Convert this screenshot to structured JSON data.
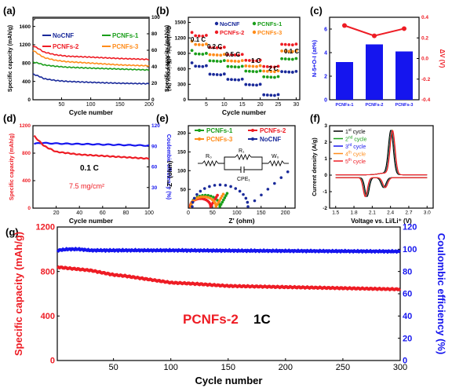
{
  "figure_colors": {
    "black": "#000000",
    "red": "#ee1c24",
    "green": "#1a9e1a",
    "orange": "#ff8c1a",
    "navy": "#1a2a9a",
    "blue": "#1515ee"
  },
  "chart_data": [
    {
      "panel": "(a)",
      "type": "line",
      "xlabel": "Cycle number",
      "ylabel": "Specific capacity (mAh/g)",
      "y2label": "Coulombic efficiency (%)",
      "xlim": [
        1,
        200
      ],
      "ylim": [
        0,
        1800
      ],
      "y2lim": [
        0,
        100
      ],
      "xticks": [
        50,
        100,
        150,
        200
      ],
      "yticks": [
        0,
        400,
        800,
        1200,
        1600
      ],
      "y2ticks": [
        0,
        20,
        40,
        60,
        80,
        100
      ],
      "legend": "top",
      "series": [
        {
          "name": "NoCNF",
          "color": "#1a2a9a",
          "x": [
            1,
            10,
            20,
            40,
            60,
            100,
            150,
            200
          ],
          "y": [
            560,
            520,
            460,
            420,
            400,
            380,
            360,
            350
          ]
        },
        {
          "name": "PCNFs-1",
          "color": "#1a9e1a",
          "x": [
            1,
            10,
            20,
            40,
            60,
            100,
            150,
            200
          ],
          "y": [
            820,
            800,
            760,
            730,
            710,
            690,
            670,
            650
          ]
        },
        {
          "name": "PCNFs-2",
          "color": "#ee1c24",
          "x": [
            1,
            10,
            20,
            40,
            60,
            100,
            150,
            200
          ],
          "y": [
            1180,
            1120,
            1040,
            980,
            950,
            930,
            900,
            880
          ]
        },
        {
          "name": "PCNFs-3",
          "color": "#ff8c1a",
          "x": [
            1,
            10,
            20,
            40,
            60,
            100,
            150,
            200
          ],
          "y": [
            1080,
            1000,
            920,
            860,
            830,
            800,
            760,
            740
          ]
        }
      ],
      "ce_series": {
        "x": [
          1,
          5,
          200
        ],
        "y": [
          96,
          99,
          99
        ]
      }
    },
    {
      "panel": "(b)",
      "type": "scatter",
      "xlabel": "Cycle number",
      "ylabel": "Specific capacity (mAh/g)",
      "xlim": [
        0,
        31
      ],
      "ylim": [
        0,
        1600
      ],
      "xticks": [
        5,
        10,
        15,
        20,
        25,
        30
      ],
      "yticks": [
        0,
        300,
        600,
        900,
        1200,
        1500
      ],
      "legend": "top-right",
      "rate_labels": [
        "0.1 C",
        "0.2 C",
        "0.5 C",
        "1 C",
        "2 C",
        "0.1 C"
      ],
      "series": [
        {
          "name": "NoCNF",
          "color": "#1a2a9a",
          "levels": [
            660,
            500,
            400,
            300,
            100,
            550
          ]
        },
        {
          "name": "PCNFs-1",
          "color": "#1a9e1a",
          "levels": [
            900,
            760,
            650,
            560,
            450,
            800
          ]
        },
        {
          "name": "PCNFs-2",
          "color": "#ee1c24",
          "levels": [
            1250,
            1020,
            880,
            770,
            650,
            1080
          ]
        },
        {
          "name": "PCNFs-3",
          "color": "#ff8c1a",
          "levels": [
            1080,
            880,
            760,
            660,
            560,
            950
          ]
        }
      ]
    },
    {
      "panel": "(c)",
      "type": "bar",
      "categories": [
        "PCNFs-1",
        "PCNFs-2",
        "PCNFs-3"
      ],
      "values": [
        3.2,
        4.7,
        4.1
      ],
      "line_values": [
        0.32,
        0.22,
        0.29
      ],
      "ylabel": "N-5+O-I (at%)",
      "y2label": "ΔV (V)",
      "ylim": [
        0,
        7
      ],
      "y2lim": [
        -0.4,
        0.4
      ],
      "yticks": [
        0,
        2,
        4,
        6
      ],
      "y2ticks": [
        -0.4,
        -0.2,
        0.0,
        0.2,
        0.4
      ],
      "y2ticklabels": [
        "-0.4",
        "-0.2",
        "0.0",
        "0.2",
        "0.4"
      ]
    },
    {
      "panel": "(d)",
      "type": "line",
      "xlabel": "Cycle number",
      "ylabel": "Specific capacity (mAh/g)",
      "y2label": "Coulombic efficiency (%)",
      "xlim": [
        0,
        100
      ],
      "ylim": [
        0,
        1200
      ],
      "y2lim": [
        0,
        120
      ],
      "xticks": [
        20,
        40,
        60,
        80,
        100
      ],
      "yticks": [
        0,
        400,
        800,
        1200
      ],
      "y2ticks": [
        30,
        60,
        90,
        120
      ],
      "annotations": [
        "0.1 C",
        "7.5 mg/cm²"
      ],
      "capacity": {
        "x": [
          1,
          5,
          10,
          20,
          40,
          60,
          80,
          100
        ],
        "y": [
          1050,
          980,
          900,
          820,
          780,
          760,
          740,
          720
        ]
      },
      "ce": {
        "x": [
          1,
          5,
          20,
          50,
          100
        ],
        "y": [
          93,
          95,
          94,
          93,
          91
        ]
      }
    },
    {
      "panel": "(e)",
      "type": "scatter",
      "xlabel": "Z' (ohm)",
      "ylabel": "-Z'' (ohm)",
      "xlim": [
        0,
        220
      ],
      "ylim": [
        0,
        220
      ],
      "xticks": [
        0,
        50,
        100,
        150,
        200
      ],
      "yticks": [
        0,
        50,
        100,
        150,
        200
      ],
      "legend": "top",
      "circuit_labels": [
        "R₀",
        "R₁",
        "W₀",
        "CPE₁"
      ],
      "series": [
        {
          "name": "PCNFs-1",
          "color": "#1a9e1a",
          "r0": 5,
          "rct": 60,
          "tail_end": [
            80,
            35
          ]
        },
        {
          "name": "PCNFs-2",
          "color": "#ee1c24",
          "r0": 4,
          "rct": 42,
          "tail_end": [
            60,
            30
          ]
        },
        {
          "name": "PCNFs-3",
          "color": "#ff8c1a",
          "r0": 5,
          "rct": 52,
          "tail_end": [
            72,
            33
          ]
        },
        {
          "name": "NoCNF",
          "color": "#1a2a9a",
          "r0": 8,
          "rct": 115,
          "tail_end": [
            205,
            92
          ]
        }
      ]
    },
    {
      "panel": "(f)",
      "type": "line",
      "xlabel": "Voltage vs. Li/Li⁺ (V)",
      "ylabel": "Current density (A/g)",
      "xlim": [
        1.4,
        3.1
      ],
      "ylim": [
        -2,
        3
      ],
      "xticks": [
        1.5,
        1.8,
        2.1,
        2.4,
        2.7,
        3.0
      ],
      "xticklabels": [
        "1.5",
        "1.8",
        "2.1",
        "2.4",
        "2.7",
        "3.0"
      ],
      "yticks": [
        -2,
        -1,
        0,
        1,
        2,
        3
      ],
      "legend": "top-left",
      "series": [
        {
          "name": "1st cycle",
          "sup": "st",
          "base": "1",
          "color": "#000000",
          "shift": -0.015
        },
        {
          "name": "2nd cycle",
          "sup": "nd",
          "base": "2",
          "color": "#1a9e1a",
          "shift": 0.0
        },
        {
          "name": "3rd cycle",
          "sup": "rd",
          "base": "3",
          "color": "#1515ee",
          "shift": 0.005
        },
        {
          "name": "4th cycle",
          "sup": "th",
          "base": "4",
          "color": "#ff8c1a",
          "shift": 0.01
        },
        {
          "name": "5th cycle",
          "sup": "th",
          "base": "5",
          "color": "#ee1c24",
          "shift": 0.015
        }
      ]
    },
    {
      "panel": "(g)",
      "type": "line",
      "xlabel": "Cycle number",
      "ylabel": "Specific capacity (mAh/g)",
      "y2label": "Coulombic efficiency (%)",
      "xlim": [
        1,
        300
      ],
      "ylim": [
        0,
        1200
      ],
      "y2lim": [
        0,
        120
      ],
      "xticks": [
        50,
        100,
        150,
        200,
        250,
        300
      ],
      "yticks": [
        0,
        400,
        800,
        1200
      ],
      "y2ticks": [
        0,
        20,
        40,
        60,
        80,
        100,
        120
      ],
      "annotation_label": "PCNFs-2",
      "annotation_rate": "1C",
      "capacity": {
        "x": [
          1,
          10,
          20,
          30,
          40,
          50,
          60,
          80,
          100,
          120,
          150,
          200,
          250,
          300
        ],
        "y": [
          840,
          830,
          820,
          810,
          790,
          770,
          760,
          730,
          700,
          690,
          670,
          660,
          650,
          640
        ]
      },
      "ce": {
        "x": [
          1,
          10,
          20,
          30,
          100,
          200,
          300
        ],
        "y": [
          99,
          100,
          100,
          99,
          99,
          98.5,
          98
        ]
      }
    }
  ]
}
